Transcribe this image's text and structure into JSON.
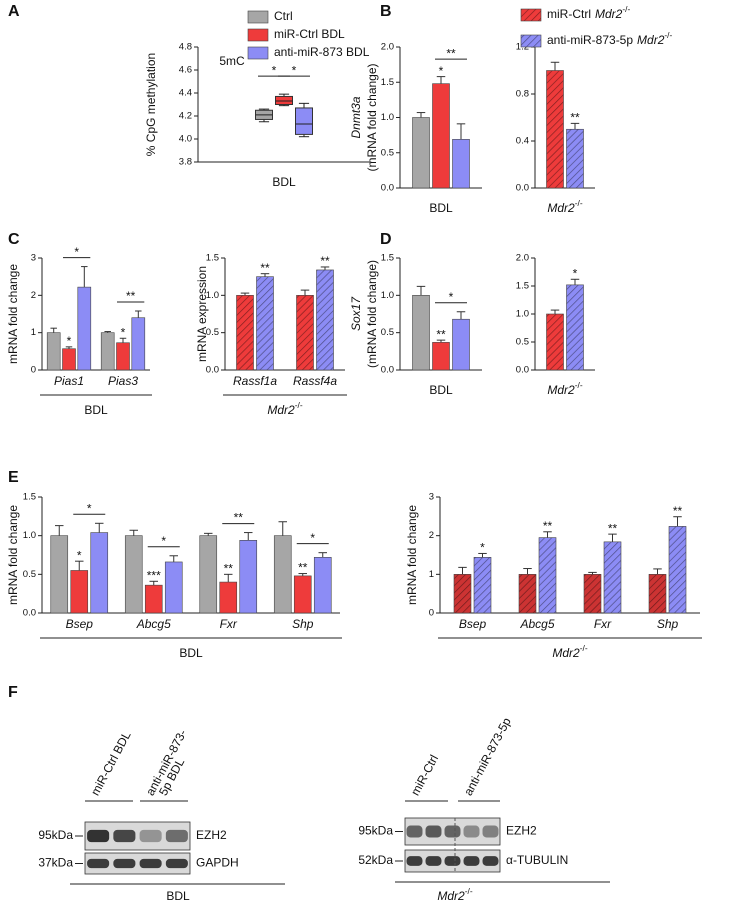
{
  "panels": [
    "A",
    "B",
    "C",
    "D",
    "E",
    "F"
  ],
  "chart_data": [
    {
      "type": "box",
      "title": "5mC",
      "ylabel": "% CpG methylation",
      "xlabel": "BDL",
      "categories": [
        null
      ],
      "ylim": [
        3.8,
        4.8
      ],
      "yticks": [
        3.8,
        {
          "value": 4,
          "label": "4.0"
        },
        4.2,
        4.4,
        4.6,
        4.8
      ],
      "legend": true,
      "series": [
        {
          "name": "Ctrl",
          "color": "#a6a6a6",
          "min": [
            4.15
          ],
          "q1": [
            4.17
          ],
          "median": [
            4.21
          ],
          "q3": [
            4.25
          ],
          "max": [
            4.26
          ]
        },
        {
          "name": "miR-Ctrl BDL",
          "color": "#ee3b3b",
          "min": [
            4.29
          ],
          "q1": [
            4.3
          ],
          "median": [
            4.33
          ],
          "q3": [
            4.37
          ],
          "max": [
            4.39
          ]
        },
        {
          "name": "anti-miR-873 BDL",
          "color": "#8c8cf5",
          "min": [
            4.02
          ],
          "q1": [
            4.04
          ],
          "median": [
            4.13
          ],
          "q3": [
            4.27
          ],
          "max": [
            4.31
          ]
        }
      ],
      "brackets": [
        {
          "group": 0,
          "between": [
            0,
            1
          ],
          "label": "*"
        },
        {
          "group": 0,
          "between": [
            1,
            2
          ],
          "label": "*"
        }
      ]
    },
    {
      "type": "bar",
      "ylabel_gene": "Dnmt3a",
      "ylabel": "(mRNA fold change)",
      "xlabel": "BDL",
      "categories": [
        null
      ],
      "ylim": [
        0,
        2
      ],
      "yticks": [
        {
          "value": 0,
          "label": "0.0"
        },
        0.5,
        {
          "value": 1,
          "label": "1.0"
        },
        1.5,
        {
          "value": 2,
          "label": "2.0"
        }
      ],
      "series": [
        {
          "color": "#a6a6a6",
          "values": [
            1.0
          ],
          "errors": [
            0.07
          ],
          "stars": [
            null
          ]
        },
        {
          "color": "#ee3b3b",
          "values": [
            1.48
          ],
          "errors": [
            0.1
          ],
          "stars": [
            "*"
          ]
        },
        {
          "color": "#8c8cf5",
          "values": [
            0.69
          ],
          "errors": [
            0.22
          ],
          "stars": [
            null
          ]
        }
      ],
      "brackets": [
        {
          "group": 0,
          "between": [
            1,
            2
          ],
          "label": "**"
        }
      ]
    },
    {
      "type": "bar",
      "hatched": true,
      "legend": true,
      "xlabel": "Mdr2",
      "xlabel_sup": "-/-",
      "categories": [
        null
      ],
      "ylim": [
        0,
        1.2
      ],
      "yticks": [
        {
          "value": 0,
          "label": "0.0"
        },
        0.4,
        0.8,
        1.2
      ],
      "series": [
        {
          "name": "miR-Ctrl",
          "name_gene": "Mdr2",
          "name_sup": "-/-",
          "color": "#ee3b3b",
          "values": [
            1.0
          ],
          "errors": [
            0.07
          ],
          "stars": [
            null
          ]
        },
        {
          "name": "anti-miR-873-5p",
          "name_gene": "Mdr2",
          "name_sup": "-/-",
          "color": "#8c8cf5",
          "values": [
            0.5
          ],
          "errors": [
            0.05
          ],
          "stars": [
            "**"
          ]
        }
      ]
    },
    {
      "type": "bar",
      "ylabel": "mRNA fold change",
      "xlabel": "BDL",
      "group_line": true,
      "categories": [
        "Pias1",
        "Pias3"
      ],
      "ylim": [
        0,
        3
      ],
      "yticks": [
        0,
        1,
        2,
        3
      ],
      "series": [
        {
          "color": "#a6a6a6",
          "values": [
            1.0,
            1.0
          ],
          "errors": [
            0.12,
            0.03
          ],
          "stars": [
            null,
            null
          ]
        },
        {
          "color": "#ee3b3b",
          "values": [
            0.57,
            0.73
          ],
          "errors": [
            0.05,
            0.12
          ],
          "stars": [
            "*",
            "*"
          ]
        },
        {
          "color": "#8c8cf5",
          "values": [
            2.22,
            1.4
          ],
          "errors": [
            0.55,
            0.18
          ],
          "stars": [
            null,
            null
          ]
        }
      ],
      "brackets": [
        {
          "group": 0,
          "between": [
            1,
            2
          ],
          "label": "*"
        },
        {
          "group": 1,
          "between": [
            1,
            2
          ],
          "label": "**"
        }
      ]
    },
    {
      "type": "bar",
      "hatched": true,
      "ylabel": "mRNA expression",
      "xlabel": "Mdr2",
      "xlabel_sup": "-/-",
      "group_line": true,
      "categories": [
        "Rassf1a",
        "Rassf4a"
      ],
      "ylim": [
        0,
        1.5
      ],
      "yticks": [
        {
          "value": 0,
          "label": "0.0"
        },
        0.5,
        {
          "value": 1,
          "label": "1.0"
        },
        1.5
      ],
      "series": [
        {
          "color": "#ee3b3b",
          "values": [
            1.0,
            1.0
          ],
          "errors": [
            0.03,
            0.07
          ],
          "stars": [
            null,
            null
          ]
        },
        {
          "color": "#8c8cf5",
          "values": [
            1.25,
            1.34
          ],
          "errors": [
            0.04,
            0.04
          ],
          "stars": [
            "**",
            "**"
          ]
        }
      ]
    },
    {
      "type": "bar",
      "ylabel_gene": "Sox17",
      "ylabel": "(mRNA fold change)",
      "xlabel": "BDL",
      "categories": [
        null
      ],
      "ylim": [
        0,
        1.5
      ],
      "yticks": [
        {
          "value": 0,
          "label": "0.0"
        },
        0.5,
        {
          "value": 1,
          "label": "1.0"
        },
        1.5
      ],
      "series": [
        {
          "color": "#a6a6a6",
          "values": [
            1.0
          ],
          "errors": [
            0.12
          ],
          "stars": [
            null
          ]
        },
        {
          "color": "#ee3b3b",
          "values": [
            0.37
          ],
          "errors": [
            0.03
          ],
          "stars": [
            "**"
          ]
        },
        {
          "color": "#8c8cf5",
          "values": [
            0.68
          ],
          "errors": [
            0.1
          ],
          "stars": [
            null
          ]
        }
      ],
      "brackets": [
        {
          "group": 0,
          "between": [
            1,
            2
          ],
          "label": "*"
        }
      ]
    },
    {
      "type": "bar",
      "hatched": true,
      "xlabel": "Mdr2",
      "xlabel_sup": "-/-",
      "categories": [
        null
      ],
      "ylim": [
        0,
        2
      ],
      "yticks": [
        {
          "value": 0,
          "label": "0.0"
        },
        0.5,
        {
          "value": 1,
          "label": "1.0"
        },
        1.5,
        {
          "value": 2,
          "label": "2.0"
        }
      ],
      "series": [
        {
          "color": "#ee3b3b",
          "values": [
            1.0
          ],
          "errors": [
            0.07
          ],
          "stars": [
            null
          ]
        },
        {
          "color": "#8c8cf5",
          "values": [
            1.52
          ],
          "errors": [
            0.1
          ],
          "stars": [
            "*"
          ]
        }
      ]
    },
    {
      "type": "bar",
      "ylabel": "mRNA fold change",
      "xlabel": "BDL",
      "group_line": true,
      "categories": [
        "Bsep",
        "Abcg5",
        "Fxr",
        "Shp"
      ],
      "ylim": [
        0,
        1.5
      ],
      "yticks": [
        {
          "value": 0,
          "label": "0.0"
        },
        0.5,
        {
          "value": 1,
          "label": "1.0"
        },
        1.5
      ],
      "series": [
        {
          "color": "#a6a6a6",
          "values": [
            1.0,
            1.0,
            1.0,
            1.0
          ],
          "errors": [
            0.13,
            0.07,
            0.03,
            0.18
          ],
          "stars": [
            null,
            null,
            null,
            null
          ]
        },
        {
          "color": "#ee3b3b",
          "values": [
            0.55,
            0.36,
            0.4,
            0.48
          ],
          "errors": [
            0.12,
            0.05,
            0.1,
            0.03
          ],
          "stars": [
            "*",
            "***",
            "**",
            "**"
          ]
        },
        {
          "color": "#8c8cf5",
          "values": [
            1.04,
            0.66,
            0.94,
            0.72
          ],
          "errors": [
            0.12,
            0.08,
            0.1,
            0.06
          ],
          "stars": [
            null,
            null,
            null,
            null
          ]
        }
      ],
      "brackets": [
        {
          "group": 0,
          "between": [
            1,
            2
          ],
          "label": "*"
        },
        {
          "group": 1,
          "between": [
            1,
            2
          ],
          "label": "*"
        },
        {
          "group": 2,
          "between": [
            1,
            2
          ],
          "label": "**"
        },
        {
          "group": 3,
          "between": [
            1,
            2
          ],
          "label": "*"
        }
      ]
    },
    {
      "type": "bar",
      "hatched": true,
      "ylabel": "mRNA fold change",
      "xlabel": "Mdr2",
      "xlabel_sup": "-/-",
      "group_line": true,
      "categories": [
        "Bsep",
        "Abcg5",
        "Fxr",
        "Shp"
      ],
      "ylim": [
        0,
        3
      ],
      "yticks": [
        0,
        1,
        2,
        3
      ],
      "series": [
        {
          "color": "#cc3333",
          "values": [
            1.0,
            1.0,
            1.0,
            1.0
          ],
          "errors": [
            0.18,
            0.15,
            0.05,
            0.14
          ],
          "stars": [
            null,
            null,
            null,
            null
          ]
        },
        {
          "color": "#8c8cf5",
          "values": [
            1.44,
            1.95,
            1.84,
            2.24
          ],
          "errors": [
            0.1,
            0.15,
            0.2,
            0.25
          ],
          "stars": [
            "*",
            "**",
            "**",
            "**"
          ]
        }
      ]
    }
  ],
  "blots": [
    {
      "lanes": [
        [
          "miR-Ctrl BDL"
        ],
        [
          "anti-miR-873-",
          "5p BDL"
        ]
      ],
      "markers": [
        "95kDa",
        "37kDa"
      ],
      "proteins": [
        "EZH2",
        "GAPDH"
      ],
      "group": "BDL"
    },
    {
      "lanes": [
        [
          "miR-Ctrl"
        ],
        [
          "anti-miR-873-5p"
        ]
      ],
      "markers": [
        "95kDa",
        "52kDa"
      ],
      "proteins": [
        "EZH2",
        "α-TUBULIN"
      ],
      "group": "Mdr2",
      "group_sup": "-/-"
    }
  ]
}
